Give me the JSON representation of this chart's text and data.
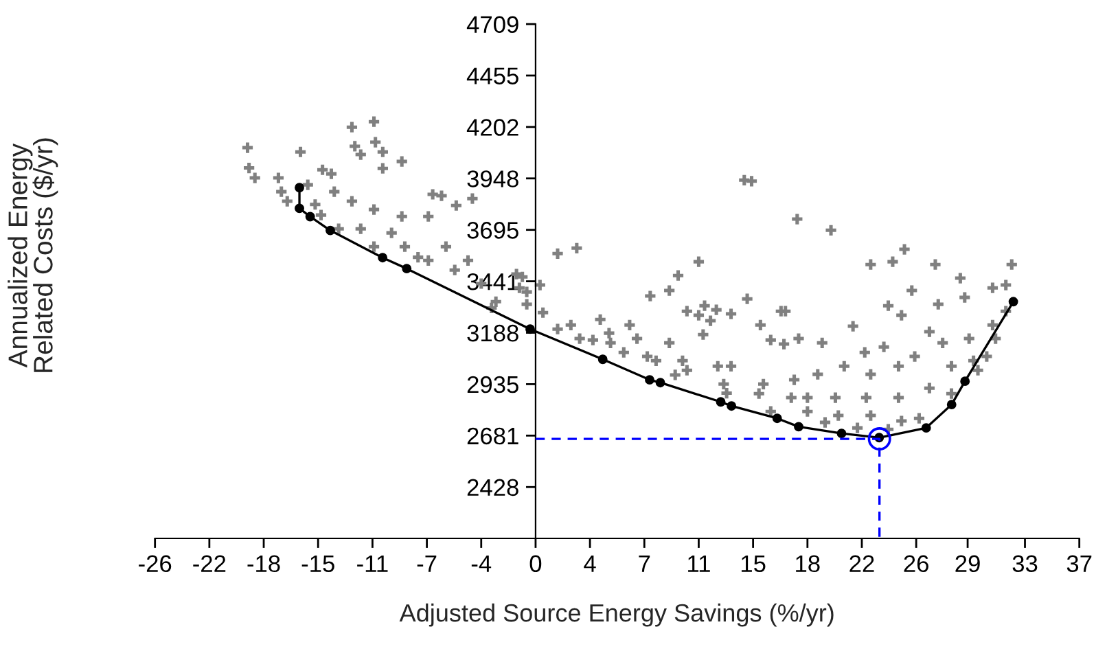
{
  "chart_data": {
    "type": "scatter",
    "xlabel": "Adjusted Source Energy Savings (%/yr)",
    "ylabel": "Annualized Energy\nRelated Costs ($/yr)",
    "xlim": [
      -25.9,
      37
    ],
    "ylim": [
      2174.5,
      4709
    ],
    "xticks": [
      {
        "value": -25.9,
        "label": "-26"
      },
      {
        "value": -22.2,
        "label": "-22"
      },
      {
        "value": -18.5,
        "label": "-18"
      },
      {
        "value": -14.8,
        "label": "-15"
      },
      {
        "value": -11.1,
        "label": "-11"
      },
      {
        "value": -7.4,
        "label": "-7"
      },
      {
        "value": -3.7,
        "label": "-4"
      },
      0,
      {
        "value": 3.7,
        "label": "4"
      },
      {
        "value": 7.4,
        "label": "7"
      },
      {
        "value": 11.1,
        "label": "11"
      },
      {
        "value": 14.8,
        "label": "15"
      },
      {
        "value": 18.5,
        "label": "18"
      },
      {
        "value": 22.2,
        "label": "22"
      },
      {
        "value": 25.9,
        "label": "26"
      },
      {
        "value": 29.4,
        "label": "29"
      },
      {
        "value": 33.3,
        "label": "33"
      },
      37
    ],
    "yticks": [
      {
        "value": 2427.5,
        "label": "2428"
      },
      2681,
      {
        "value": 2934.5,
        "label": "2935"
      },
      3188,
      {
        "value": 3441.5,
        "label": "3441"
      },
      3695,
      {
        "value": 3948.5,
        "label": "3948"
      },
      4202,
      {
        "value": 4455.5,
        "label": "4455"
      },
      4709
    ],
    "grid": false,
    "legend": false,
    "series": [
      {
        "marker": "cross",
        "color": "#808080",
        "x": [
          -19.6,
          -19.5,
          -19.1,
          -17.5,
          -17.3,
          -16.9,
          -16.0,
          -12.5,
          -11.0,
          -12.3,
          -11.9,
          -10.9,
          -10.4,
          -10.4,
          -9.1,
          -14.5,
          -13.9,
          -15.5,
          -13.7,
          -12.5,
          -11.0,
          -9.1,
          -7.0,
          -6.4,
          -4.3,
          -5.4,
          -7.3,
          -6.1,
          -4.6,
          -1.3,
          -0.6,
          -14.6,
          -13.4,
          -11.9,
          -9.8,
          -8.9,
          -11.0,
          -7.3,
          -5.5,
          -3.7,
          -2.7,
          1.5,
          2.8,
          -0.9,
          0.3,
          -1.1,
          -0.6,
          0.5,
          2.4,
          4.4,
          6.4,
          5.0,
          6.9,
          9.1,
          7.8,
          9.1,
          9.7,
          11.1,
          10.3,
          11.1,
          12.3,
          13.3,
          11.5,
          11.4,
          11.9,
          14.4,
          16.7,
          15.3,
          16.0,
          16.9,
          17.8,
          10.0,
          12.4,
          8.2,
          6.0,
          3.9,
          13.3,
          15.5,
          17.6,
          17.4,
          15.2,
          12.8,
          10.3,
          7.6,
          5.1,
          3.0,
          1.5,
          14.2,
          14.7,
          20.1,
          25.1,
          22.8,
          24.3,
          27.2,
          32.4,
          28.9,
          25.6,
          24.0,
          24.9,
          27.4,
          29.2,
          31.1,
          32.0,
          17.0,
          17.9,
          19.5,
          21.6,
          22.4,
          23.7,
          26.8,
          27.7,
          29.5,
          31.1,
          29.8,
          28.3,
          25.8,
          24.7,
          22.8,
          21.0,
          19.2,
          18.5,
          20.4,
          22.5,
          24.7,
          26.8,
          28.3,
          18.5,
          20.6,
          22.8,
          24.9,
          26.1,
          19.7,
          21.9,
          24.0,
          30.7,
          31.3,
          30.1,
          32.0,
          9.5,
          13.0,
          16.0,
          -3.0,
          -8.0,
          -15.0
        ],
        "values": [
          4100,
          4000,
          3951,
          3951,
          3883,
          3836,
          4079,
          4201,
          4228,
          4107,
          4066,
          4127,
          4079,
          3998,
          4032,
          3991,
          3971,
          3917,
          3883,
          3836,
          3795,
          3761,
          3870,
          3863,
          3849,
          3815,
          3761,
          3612,
          3544,
          3477,
          3389,
          3768,
          3700,
          3700,
          3680,
          3612,
          3612,
          3544,
          3497,
          3430,
          3341,
          3578,
          3605,
          3463,
          3423,
          3409,
          3328,
          3287,
          3226,
          3253,
          3226,
          3186,
          3159,
          3138,
          3369,
          3396,
          3470,
          3538,
          3294,
          3274,
          3301,
          3281,
          3321,
          3179,
          3247,
          3355,
          3294,
          3226,
          3152,
          3132,
          3748,
          3050,
          3023,
          3050,
          3091,
          3152,
          3023,
          2935,
          2956,
          2868,
          2888,
          2935,
          3003,
          3071,
          3138,
          3159,
          3206,
          3940,
          3935,
          3693,
          3599,
          3524,
          3538,
          3524,
          3524,
          3457,
          3396,
          3321,
          3274,
          3328,
          3362,
          3409,
          3423,
          3294,
          3159,
          3138,
          3220,
          3091,
          3118,
          3193,
          3138,
          3159,
          3226,
          3050,
          3023,
          3071,
          3023,
          2983,
          3023,
          2983,
          2868,
          2868,
          2868,
          2868,
          2915,
          2888,
          2800,
          2780,
          2780,
          2753,
          2766,
          2746,
          2719,
          2712,
          3071,
          3159,
          3003,
          3294,
          2980,
          2890,
          2800,
          3310,
          3560,
          3820
        ]
      },
      {
        "type": "line",
        "marker": "circle",
        "line_style": "solid",
        "color": "#000000",
        "x": [
          -16.07,
          -16.07,
          -15.34,
          -13.97,
          -10.41,
          -8.77,
          -0.37,
          4.57,
          7.76,
          8.49,
          12.6,
          13.33,
          16.44,
          17.9,
          20.82,
          23.38,
          26.58,
          28.31,
          29.22,
          32.51
        ],
        "values": [
          3903,
          3801,
          3760,
          3692,
          3558,
          3504,
          3206,
          3057,
          2956,
          2942,
          2847,
          2827,
          2766,
          2725,
          2692,
          2671,
          2719,
          2834,
          2949,
          3341
        ]
      },
      {
        "type": "line",
        "marker": "none",
        "line_style": "dashed",
        "color": "#0000ff",
        "x": [
          0,
          23.4,
          23.4
        ],
        "values": [
          2665,
          2665,
          2175
        ]
      },
      {
        "marker": "circle",
        "color": "#0000ff",
        "x": [
          23.4
        ],
        "values": [
          2665
        ]
      }
    ]
  }
}
